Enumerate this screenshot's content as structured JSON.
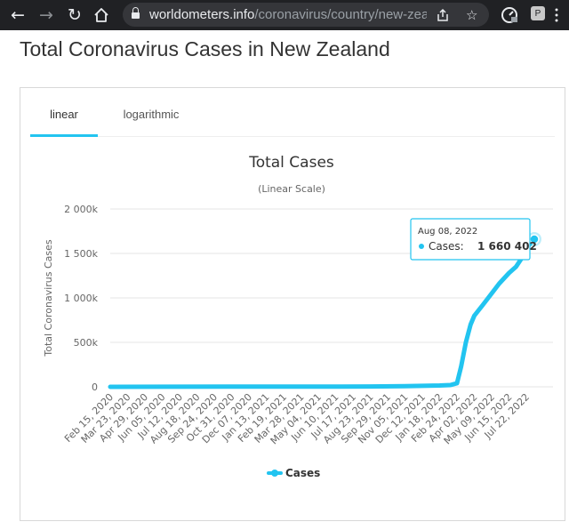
{
  "browser": {
    "url_domain": "worldometers.info",
    "url_path": "/coronavirus/country/new-zeal...",
    "icons": [
      "back-arrow-icon",
      "forward-arrow-icon",
      "reload-icon",
      "home-icon",
      "lock-icon",
      "share-icon",
      "star-icon",
      "extension-icon",
      "profile-icon"
    ],
    "ext_letter": "P"
  },
  "page": {
    "title": "Total Coronavirus Cases in New Zealand"
  },
  "tabs": [
    {
      "label": "linear",
      "active": true
    },
    {
      "label": "logarithmic",
      "active": false
    }
  ],
  "colors": {
    "series": "#22c4f0",
    "axis_text": "#666666",
    "grid": "#e6e6e6"
  },
  "chart_data": {
    "type": "line",
    "title": "Total Cases",
    "subtitle": "(Linear Scale)",
    "ylabel": "Total Coronavirus Cases",
    "ylim": [
      0,
      2000000
    ],
    "yticks": [
      0,
      500000,
      1000000,
      1500000,
      2000000
    ],
    "ytick_labels": [
      "0",
      "500k",
      "1 000k",
      "1 500k",
      "2 000k"
    ],
    "x_tick_labels": [
      "Feb 15, 2020",
      "Mar 23, 2020",
      "Apr 29, 2020",
      "Jun 05, 2020",
      "Jul 12, 2020",
      "Aug 18, 2020",
      "Sep 24, 2020",
      "Oct 31, 2020",
      "Dec 07, 2020",
      "Jan 13, 2021",
      "Feb 19, 2021",
      "Mar 28, 2021",
      "May 04, 2021",
      "Jun 10, 2021",
      "Jul 17, 2021",
      "Aug 23, 2021",
      "Sep 29, 2021",
      "Nov 05, 2021",
      "Dec 12, 2021",
      "Jan 18, 2022",
      "Feb 24, 2022",
      "Apr 02, 2022",
      "May 09, 2022",
      "Jun 15, 2022",
      "Jul 22, 2022"
    ],
    "grid": true,
    "legend_position": "bottom-center",
    "series": [
      {
        "name": "Cases",
        "x": [
          "2020-02-15",
          "2020-06-05",
          "2020-10-31",
          "2021-03-28",
          "2021-08-23",
          "2021-11-05",
          "2022-01-18",
          "2022-02-10",
          "2022-02-24",
          "2022-03-05",
          "2022-03-15",
          "2022-03-25",
          "2022-04-02",
          "2022-04-20",
          "2022-05-09",
          "2022-05-25",
          "2022-06-15",
          "2022-06-30",
          "2022-07-10",
          "2022-07-22",
          "2022-08-08"
        ],
        "values": [
          0,
          1500,
          2000,
          2500,
          3500,
          8000,
          15000,
          20000,
          40000,
          230000,
          500000,
          700000,
          800000,
          920000,
          1050000,
          1160000,
          1280000,
          1350000,
          1430000,
          1560000,
          1660402
        ]
      }
    ],
    "tooltip": {
      "date": "Aug 08, 2022",
      "series": "Cases",
      "value_text": "1 660 402"
    }
  }
}
